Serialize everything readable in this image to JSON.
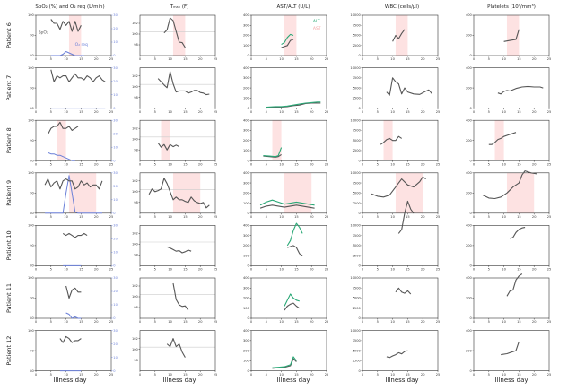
{
  "chart_data": {
    "type": "line",
    "title": "",
    "xlabel": "Illness day",
    "columns": [
      {
        "key": "spo2",
        "title": "SpO₂ (%) and O₂ req (L/min)",
        "ylim": [
          80,
          100
        ],
        "yticks": [
          80,
          90,
          100
        ],
        "right_ylim": [
          0,
          30
        ],
        "right_yticks": [
          0,
          10,
          20,
          30
        ]
      },
      {
        "key": "tmax",
        "title": "Tₘₐₓ (F)",
        "ylim": [
          96,
          103.5
        ],
        "yticks": [
          98,
          100,
          102
        ],
        "ref_line": 100.4
      },
      {
        "key": "astalt",
        "title": "AST/ALT (U/L)",
        "ylim": [
          0,
          400
        ],
        "yticks": [
          0,
          100,
          200,
          300,
          400
        ]
      },
      {
        "key": "wbc",
        "title": "WBC (cells/µl)",
        "ylim": [
          0,
          10000
        ],
        "yticks": [
          0,
          2500,
          5000,
          7500,
          10000
        ]
      },
      {
        "key": "plt",
        "title": "Platelets (10³/mm³)",
        "ylim": [
          0,
          400
        ],
        "yticks": [
          0,
          200,
          400
        ]
      }
    ],
    "x_ticks": [
      0,
      5,
      10,
      15,
      20,
      25
    ],
    "xlim": [
      0,
      25
    ],
    "legend": {
      "alt": "ALT",
      "ast": "AST",
      "spo2": "SpO₂",
      "o2": "O₂ req"
    },
    "colors": {
      "dark": "#555555",
      "alt": "#2aa876",
      "ast": "#f4a0a0",
      "o2": "#6a7fd8",
      "shade": "#fde2e2",
      "ref": "#cccccc"
    },
    "patients": [
      {
        "label": "Patient 6",
        "shade": [
          11,
          15
        ],
        "spo2": {
          "x": [
            5,
            6,
            7,
            8,
            9,
            10,
            11,
            12,
            13,
            14,
            15
          ],
          "y": [
            98,
            96,
            96,
            93,
            97,
            95,
            97,
            92,
            97,
            92,
            95
          ]
        },
        "o2": {
          "x": [
            5,
            8,
            9,
            10,
            11,
            12,
            13,
            14,
            15,
            16
          ],
          "y": [
            0,
            0,
            1,
            3,
            2,
            1,
            0,
            0,
            0,
            0
          ]
        },
        "tmax": {
          "x": [
            8,
            9,
            10,
            11,
            12,
            13,
            14,
            15
          ],
          "y": [
            100.2,
            100.8,
            103,
            102.5,
            100.5,
            98.5,
            98.4,
            97.5
          ]
        },
        "alt": {
          "x": [
            10,
            11,
            12,
            13,
            14
          ],
          "y": [
            110,
            130,
            180,
            210,
            200
          ]
        },
        "ast": {
          "x": [
            10,
            11,
            12,
            13,
            14
          ],
          "y": [
            80,
            90,
            100,
            150,
            160
          ]
        },
        "wbc": {
          "x": [
            10,
            11,
            12,
            13,
            14
          ],
          "y": [
            3500,
            5000,
            4200,
            5500,
            6500
          ]
        },
        "plt": {
          "x": [
            10,
            12,
            14,
            15
          ],
          "y": [
            140,
            150,
            160,
            260
          ]
        }
      },
      {
        "label": "Patient 7",
        "shade": null,
        "spo2": {
          "x": [
            5,
            6,
            7,
            8,
            9,
            10,
            11,
            12,
            13,
            14,
            15,
            16,
            17,
            18,
            19,
            20,
            21,
            22,
            23
          ],
          "y": [
            99,
            93,
            96,
            95,
            96,
            96,
            93,
            95,
            97,
            95,
            95,
            94,
            96,
            95,
            93,
            95,
            96,
            94,
            93
          ]
        },
        "o2": {
          "x": [
            5,
            23
          ],
          "y": [
            0,
            0
          ]
        },
        "tmax": {
          "x": [
            6,
            8,
            9,
            10,
            11,
            12,
            13,
            15,
            16,
            17,
            18,
            19,
            20,
            21,
            22,
            23
          ],
          "y": [
            101.5,
            100.3,
            99.8,
            102.8,
            100.5,
            99,
            99.2,
            99.2,
            98.8,
            99,
            99.3,
            99.3,
            98.9,
            98.8,
            98.5,
            98.6
          ]
        },
        "alt": {
          "x": [
            5,
            8,
            10,
            12,
            14,
            16,
            18,
            20,
            22,
            23
          ],
          "y": [
            10,
            15,
            15,
            20,
            30,
            40,
            50,
            55,
            60,
            60
          ]
        },
        "ast": {
          "x": [
            5,
            8,
            10,
            12,
            14,
            16,
            18,
            20,
            22,
            23
          ],
          "y": [
            5,
            10,
            10,
            15,
            25,
            30,
            45,
            50,
            50,
            50
          ]
        },
        "wbc": {
          "x": [
            8,
            9,
            10,
            11,
            12,
            13,
            14,
            15,
            17,
            19,
            20,
            21,
            22,
            23
          ],
          "y": [
            4000,
            3200,
            7500,
            6500,
            6000,
            3500,
            5000,
            4000,
            3500,
            3400,
            3800,
            4200,
            4500,
            3600
          ]
        },
        "plt": {
          "x": [
            8,
            9,
            10,
            11,
            12,
            14,
            16,
            18,
            20,
            22,
            23
          ],
          "y": [
            150,
            140,
            165,
            175,
            170,
            195,
            210,
            215,
            210,
            210,
            200
          ]
        }
      },
      {
        "label": "Patient 8",
        "shade": [
          7,
          10
        ],
        "spo2": {
          "x": [
            4,
            5,
            6,
            7,
            8,
            9,
            10,
            11,
            12,
            13,
            14
          ],
          "y": [
            93,
            96,
            97,
            97,
            99,
            96,
            96,
            97,
            95,
            96,
            97
          ]
        },
        "o2": {
          "x": [
            4,
            5,
            6,
            7,
            8,
            9,
            10,
            11,
            12,
            13
          ],
          "y": [
            6,
            5,
            5,
            4,
            4,
            3,
            2,
            1,
            0,
            0
          ]
        },
        "tmax": {
          "x": [
            6,
            7,
            8,
            9,
            10,
            11,
            12,
            13
          ],
          "y": [
            99.3,
            98.5,
            99,
            98,
            99,
            98.6,
            98.9,
            98.6
          ]
        },
        "alt": {
          "x": [
            4,
            6,
            8,
            9,
            10
          ],
          "y": [
            50,
            45,
            40,
            50,
            130
          ]
        },
        "ast": {
          "x": [
            4,
            6,
            8,
            9,
            10
          ],
          "y": [
            45,
            40,
            35,
            40,
            60
          ]
        },
        "wbc": {
          "x": [
            6,
            7,
            8,
            9,
            10,
            11,
            12,
            13
          ],
          "y": [
            4000,
            4500,
            5200,
            5500,
            5000,
            5000,
            6000,
            5500
          ]
        },
        "plt": {
          "x": [
            5,
            6,
            7,
            8,
            9,
            10,
            12,
            14
          ],
          "y": [
            160,
            160,
            180,
            210,
            220,
            240,
            260,
            280
          ]
        }
      },
      {
        "label": "Patient 9",
        "shade": [
          11,
          20
        ],
        "spo2": {
          "x": [
            3,
            4,
            5,
            6,
            7,
            8,
            9,
            10,
            11,
            12,
            13,
            14,
            15,
            16,
            17,
            18,
            19,
            20,
            21,
            22
          ],
          "y": [
            94,
            97,
            93,
            95,
            96,
            92,
            96,
            97,
            96,
            96,
            92,
            93,
            96,
            94,
            95,
            93,
            94,
            94,
            92,
            96
          ]
        },
        "o2": {
          "x": [
            3,
            9,
            10,
            11,
            12,
            13,
            14,
            15,
            16,
            22
          ],
          "y": [
            0,
            0,
            15,
            28,
            15,
            1,
            0,
            0,
            0,
            0
          ]
        },
        "tmax": {
          "x": [
            3,
            4,
            5,
            6,
            7,
            8,
            9,
            10,
            11,
            12,
            13,
            14,
            15,
            16,
            17,
            18,
            19,
            20,
            21,
            22,
            23
          ],
          "y": [
            99.5,
            100.5,
            100,
            100.2,
            100.5,
            102.5,
            101.5,
            100,
            98.5,
            99,
            98.5,
            98.5,
            98.2,
            98,
            99,
            98.3,
            98,
            97.8,
            98,
            97,
            97.5
          ]
        },
        "alt": {
          "x": [
            3,
            5,
            7,
            9,
            11,
            13,
            15,
            17,
            19,
            21
          ],
          "y": [
            80,
            110,
            130,
            110,
            90,
            100,
            110,
            100,
            90,
            80
          ]
        },
        "ast": {
          "x": [
            3,
            5,
            7,
            9,
            11,
            13,
            15,
            17,
            19,
            21
          ],
          "y": [
            50,
            70,
            80,
            70,
            60,
            70,
            80,
            70,
            60,
            50
          ]
        },
        "wbc": {
          "x": [
            3,
            5,
            7,
            9,
            11,
            12,
            13,
            15,
            17,
            19,
            20,
            21
          ],
          "y": [
            4800,
            4200,
            4000,
            4500,
            6500,
            7500,
            8500,
            7000,
            6500,
            7800,
            9000,
            8500
          ]
        },
        "plt": {
          "x": [
            3,
            5,
            7,
            9,
            11,
            13,
            15,
            16,
            17,
            19,
            21
          ],
          "y": [
            180,
            150,
            145,
            160,
            200,
            260,
            300,
            380,
            420,
            400,
            390
          ]
        }
      },
      {
        "label": "Patient 10",
        "shade": null,
        "spo2": {
          "x": [
            9,
            10,
            11,
            12,
            13,
            14,
            15,
            16,
            17
          ],
          "y": [
            96,
            95,
            96,
            95,
            94,
            95,
            95,
            96,
            95
          ]
        },
        "o2": {
          "x": [
            9,
            15
          ],
          "y": [
            0,
            0
          ]
        },
        "tmax": {
          "x": [
            9,
            10,
            11,
            12,
            13,
            14,
            15,
            16,
            17
          ],
          "y": [
            99.5,
            99.3,
            99,
            98.7,
            98.8,
            98.4,
            98.6,
            98.9,
            98.7
          ]
        },
        "alt": {
          "x": [
            12,
            13,
            14,
            15,
            16,
            17
          ],
          "y": [
            200,
            250,
            350,
            420,
            380,
            320
          ]
        },
        "ast": {
          "x": [
            12,
            13,
            14,
            15,
            16,
            17
          ],
          "y": [
            180,
            190,
            200,
            180,
            120,
            100
          ]
        },
        "wbc": {
          "x": [
            12,
            13,
            14,
            15,
            16,
            17
          ],
          "y": [
            8000,
            9000,
            13000,
            16000,
            14000,
            13000
          ]
        },
        "plt": {
          "x": [
            12,
            13,
            14,
            15,
            16,
            17
          ],
          "y": [
            270,
            280,
            330,
            360,
            375,
            380
          ]
        }
      },
      {
        "label": "Patient 11",
        "shade": null,
        "spo2": {
          "x": [
            10,
            11,
            12,
            13,
            14,
            15
          ],
          "y": [
            96,
            90,
            94,
            95,
            93,
            93
          ]
        },
        "o2": {
          "x": [
            10,
            11,
            12,
            13,
            14,
            15
          ],
          "y": [
            4,
            3,
            0,
            1,
            0,
            0
          ]
        },
        "tmax": {
          "x": [
            11,
            12,
            13,
            14,
            15,
            16
          ],
          "y": [
            102.5,
            99.5,
            98.5,
            98.2,
            98.3,
            97.5
          ]
        },
        "alt": {
          "x": [
            11,
            12,
            13,
            14,
            15,
            16
          ],
          "y": [
            120,
            180,
            240,
            200,
            180,
            170
          ]
        },
        "ast": {
          "x": [
            11,
            12,
            13,
            14,
            15,
            16
          ],
          "y": [
            80,
            120,
            140,
            150,
            120,
            100
          ]
        },
        "wbc": {
          "x": [
            11,
            12,
            13,
            14,
            15,
            16
          ],
          "y": [
            6500,
            7500,
            6500,
            6200,
            6800,
            6000
          ]
        },
        "plt": {
          "x": [
            11,
            12,
            13,
            14,
            15,
            16
          ],
          "y": [
            220,
            270,
            280,
            380,
            420,
            440
          ]
        }
      },
      {
        "label": "Patient 12",
        "shade": null,
        "spo2": {
          "x": [
            8,
            9,
            10,
            11,
            12,
            13,
            14,
            15
          ],
          "y": [
            96,
            94,
            97,
            96,
            94,
            95,
            95,
            96
          ]
        },
        "o2": {
          "x": [
            8,
            15
          ],
          "y": [
            0,
            0
          ]
        },
        "tmax": {
          "x": [
            9,
            10,
            11,
            12,
            13,
            14,
            15
          ],
          "y": [
            101,
            100.5,
            102,
            100.5,
            101,
            99.5,
            98.5
          ]
        },
        "alt": {
          "x": [
            7,
            9,
            11,
            13,
            14,
            15
          ],
          "y": [
            30,
            35,
            40,
            60,
            140,
            100
          ]
        },
        "ast": {
          "x": [
            7,
            9,
            11,
            13,
            14,
            15
          ],
          "y": [
            25,
            30,
            35,
            50,
            120,
            90
          ]
        },
        "wbc": {
          "x": [
            8,
            9,
            10,
            11,
            12,
            13,
            14,
            15
          ],
          "y": [
            3500,
            3300,
            3700,
            4000,
            4500,
            4200,
            4800,
            5000
          ]
        },
        "plt": {
          "x": [
            9,
            11,
            13,
            14,
            15
          ],
          "y": [
            160,
            170,
            190,
            200,
            290
          ]
        }
      }
    ]
  }
}
